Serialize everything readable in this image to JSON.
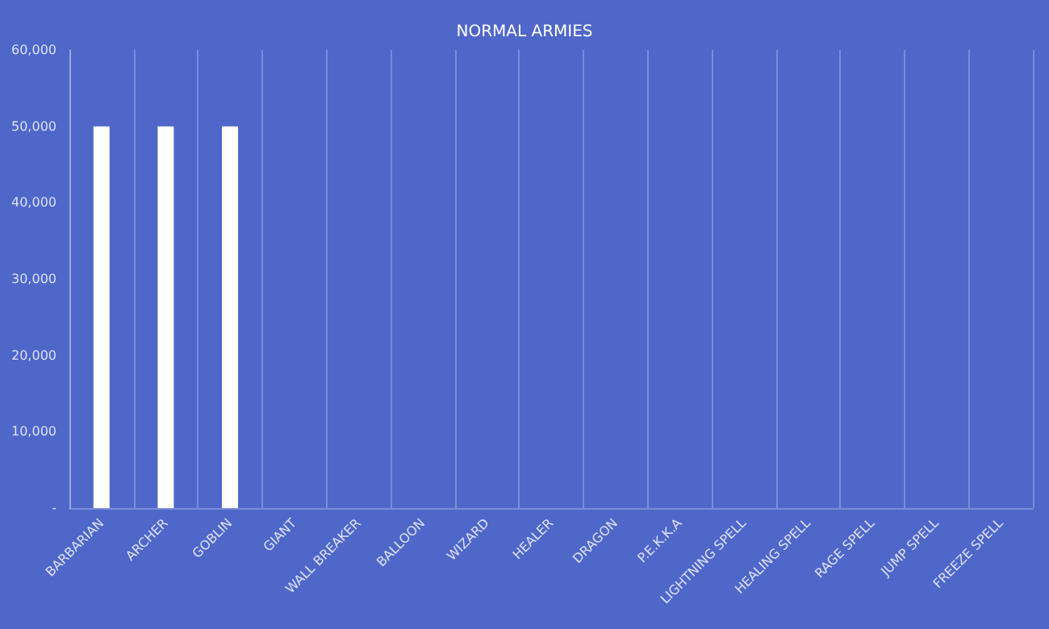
{
  "chart_data": {
    "type": "bar",
    "title": "NORMAL ARMIES",
    "categories": [
      "BARBARIAN",
      "ARCHER",
      "GOBLIN",
      "GIANT",
      "WALL BREAKER",
      "BALLOON",
      "WIZARD",
      "HEALER",
      "DRAGON",
      "P.E.K.K.A",
      "LIGHTNING SPELL",
      "HEALING SPELL",
      "RAGE SPELL",
      "JUMP SPELL",
      "FREEZE SPELL"
    ],
    "values": [
      50000,
      50000,
      50000,
      null,
      null,
      null,
      null,
      null,
      null,
      null,
      null,
      null,
      null,
      null,
      null
    ],
    "color": "#ffffff",
    "ylim": [
      0,
      60000
    ],
    "yticks": [
      {
        "value": 0,
        "label": "-"
      },
      {
        "value": 10000,
        "label": "10,000"
      },
      {
        "value": 20000,
        "label": "20,000"
      },
      {
        "value": 30000,
        "label": "30,000"
      },
      {
        "value": 40000,
        "label": "40,000"
      },
      {
        "value": 50000,
        "label": "50,000"
      },
      {
        "value": 60000,
        "label": "60,000"
      }
    ],
    "grid": "x"
  }
}
